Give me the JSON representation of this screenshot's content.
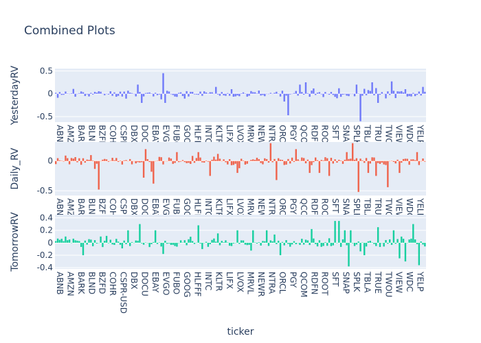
{
  "chart_data": {
    "type": "bar",
    "title": "Combined Plots",
    "xlabel": "ticker",
    "tick_labels": [
      "ABNB",
      "AMZN",
      "BARK",
      "BLND",
      "BZFD",
      "COHR",
      "CSPR-USD",
      "DBX",
      "DOCU",
      "EBAY",
      "EVGO",
      "FUBO",
      "GOOG",
      "HLFFF",
      "INTC",
      "KLTR",
      "LIFX",
      "LVOX",
      "MRVL",
      "NEWR",
      "NTRA",
      "ORCL",
      "PGY",
      "QCOM",
      "RDFN",
      "ROOT",
      "SFT",
      "SNAP",
      "SPLK",
      "TBLA",
      "TRUE",
      "TWOU",
      "VIEW",
      "WDC",
      "YELP"
    ],
    "n_bars": 190,
    "spikes_note": "",
    "panels": [
      {
        "ylabel": "YesterdayRV",
        "color": "#636efa",
        "yticks": [
          0.5,
          0,
          -0.5
        ],
        "ylim": [
          -0.62,
          0.55
        ],
        "spikes": [
          [
            13,
            0.05
          ],
          [
            42,
            0.2
          ],
          [
            44,
            -0.2
          ],
          [
            55,
            0.45
          ],
          [
            56,
            -0.2
          ],
          [
            82,
            0.15
          ],
          [
            90,
            0.1
          ],
          [
            119,
            -0.47
          ],
          [
            125,
            0.2
          ],
          [
            128,
            0.25
          ],
          [
            145,
            0.12
          ],
          [
            154,
            0.2
          ],
          [
            156,
            -0.6
          ],
          [
            162,
            0.25
          ],
          [
            165,
            -0.2
          ],
          [
            172,
            0.27
          ],
          [
            179,
            0.1
          ],
          [
            188,
            0.15
          ]
        ],
        "seed": 11
      },
      {
        "ylabel": "Daily_RV",
        "color": "#ef553b",
        "yticks": [
          0,
          -0.5
        ],
        "ylim": [
          -0.58,
          0.32
        ],
        "spikes": [
          [
            18,
            0.1
          ],
          [
            22,
            -0.48
          ],
          [
            45,
            -0.28
          ],
          [
            46,
            0.2
          ],
          [
            49,
            -0.18
          ],
          [
            50,
            -0.38
          ],
          [
            62,
            0.15
          ],
          [
            73,
            0.15
          ],
          [
            79,
            -0.25
          ],
          [
            83,
            0.12
          ],
          [
            93,
            -0.2
          ],
          [
            110,
            0.3
          ],
          [
            113,
            -0.32
          ],
          [
            123,
            0.2
          ],
          [
            130,
            -0.2
          ],
          [
            135,
            -0.2
          ],
          [
            140,
            -0.25
          ],
          [
            149,
            0.15
          ],
          [
            152,
            0.3
          ],
          [
            155,
            -0.52
          ],
          [
            160,
            -0.2
          ],
          [
            164,
            -0.25
          ],
          [
            170,
            -0.44
          ],
          [
            176,
            -0.2
          ],
          [
            185,
            0.15
          ],
          [
            190,
            -0.25
          ]
        ],
        "seed": 23
      },
      {
        "ylabel": "TomorrowRV",
        "color": "#00cc96",
        "yticks": [
          0.4,
          0.2,
          0,
          -0.2,
          -0.4
        ],
        "ylim": [
          -0.42,
          0.45
        ],
        "spikes": [
          [
            5,
            0.1
          ],
          [
            14,
            -0.2
          ],
          [
            23,
            0.1
          ],
          [
            37,
            0.2
          ],
          [
            43,
            0.3
          ],
          [
            51,
            0.2
          ],
          [
            55,
            -0.18
          ],
          [
            73,
            0.28
          ],
          [
            83,
            0.15
          ],
          [
            93,
            0.2
          ],
          [
            101,
            0.2
          ],
          [
            108,
            0.2
          ],
          [
            115,
            -0.2
          ],
          [
            131,
            0.22
          ],
          [
            143,
            0.35
          ],
          [
            145,
            0.35
          ],
          [
            148,
            0.2
          ],
          [
            150,
            -0.38
          ],
          [
            151,
            0.2
          ],
          [
            158,
            -0.2
          ],
          [
            165,
            0.25
          ],
          [
            173,
            0.2
          ],
          [
            176,
            -0.25
          ],
          [
            179,
            -0.3
          ],
          [
            183,
            0.3
          ],
          [
            186,
            -0.36
          ],
          [
            191,
            -0.2
          ]
        ],
        "seed": 37
      }
    ],
    "grid": true,
    "legend": "none"
  }
}
